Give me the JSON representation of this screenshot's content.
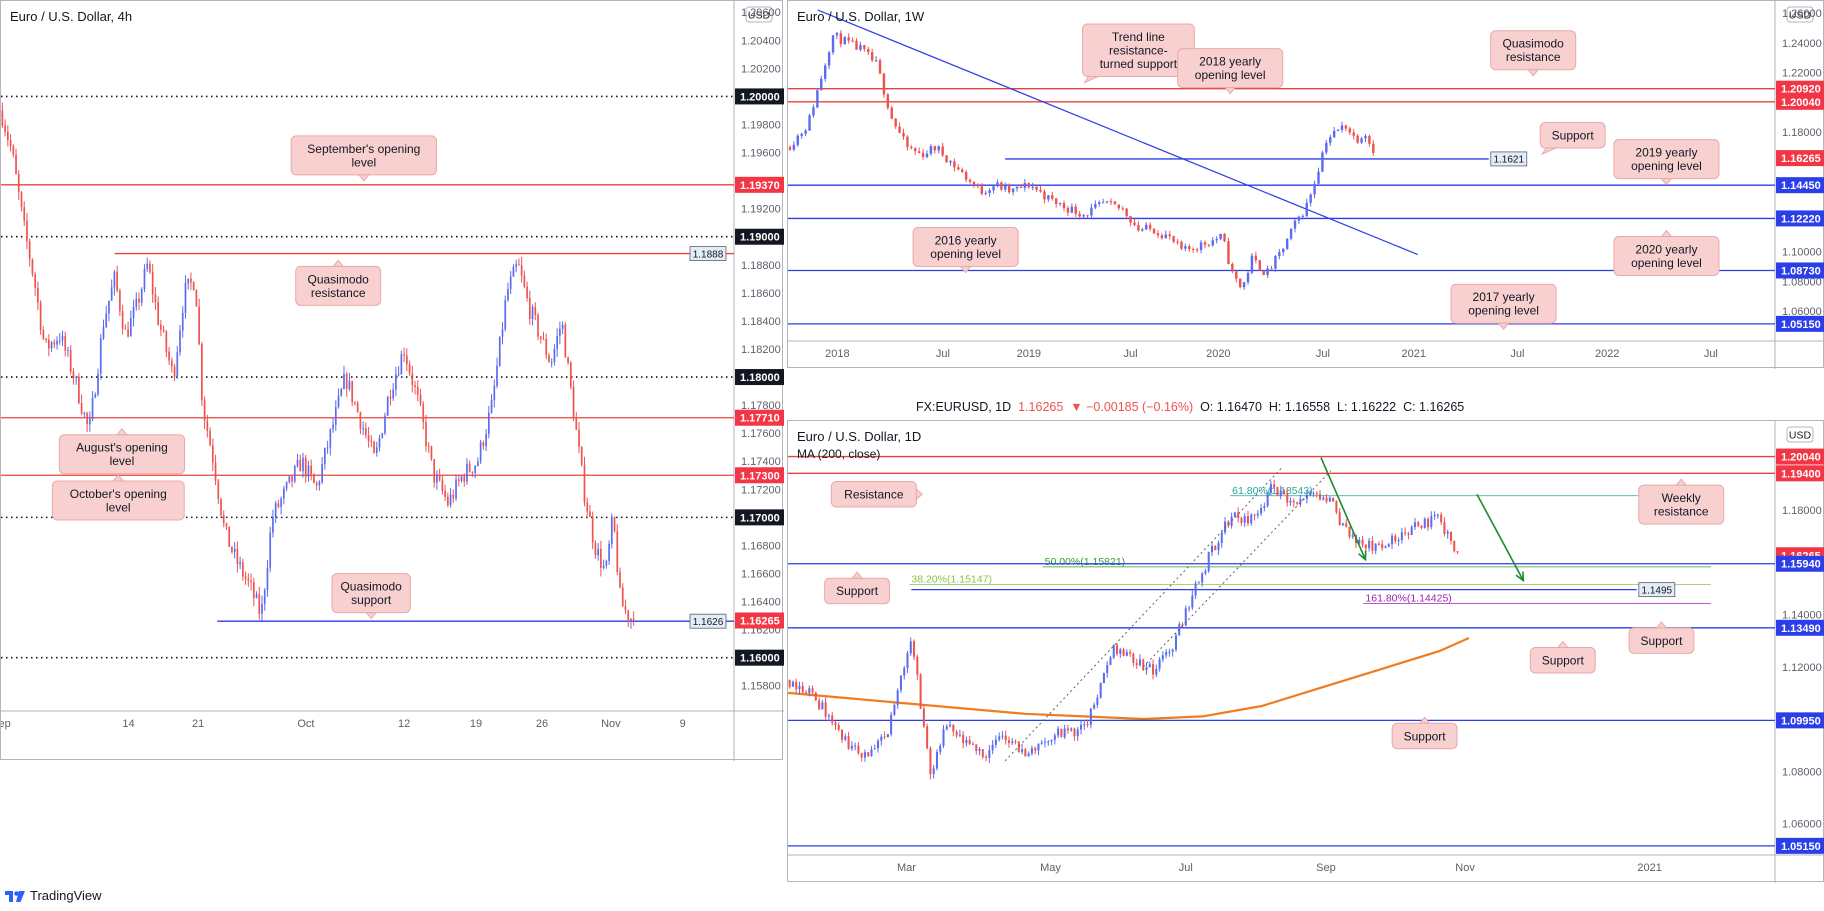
{
  "colors": {
    "red_line": "#e8423f",
    "blue_line": "#2c3ee8",
    "black_dotted": "#131722",
    "candle_up": "#5b6cf0",
    "candle_down": "#ef5350",
    "callout_bg": "#f8d0cf",
    "callout_border": "#e9a9a8",
    "ma_orange": "#f07c1e",
    "fib_green": "#2e9e2e",
    "fib_purple": "#9c27b0"
  },
  "ohlc": {
    "symbol": "FX:EURUSD, 1D",
    "close": "1.16265",
    "change": "▼ −0.00185 (−0.16%)",
    "open": "O: 1.16470",
    "high": "H: 1.16558",
    "low": "L: 1.16222",
    "close_label": "C: 1.16265"
  },
  "branding": {
    "name": "TradingView"
  },
  "chart_data": [
    {
      "id": "h4",
      "type": "candlestick",
      "title": "Euro / U.S. Dollar, 4h",
      "currency_badge": "USD",
      "ylim": [
        1.1562,
        1.2068
      ],
      "xlim": [
        0,
        100
      ],
      "y_ticks": [
        "1.20600",
        "1.20400",
        "1.20200",
        "1.19800",
        "1.19600",
        "1.19200",
        "1.18800",
        "1.18600",
        "1.18400",
        "1.18200",
        "1.17800",
        "1.17600",
        "1.17400",
        "1.17200",
        "1.16800",
        "1.16600",
        "1.16400",
        "1.16200",
        "1.15800"
      ],
      "x_ticks": [
        {
          "label": "ep",
          "x": 0.5
        },
        {
          "label": "14",
          "x": 17.4
        },
        {
          "label": "21",
          "x": 26.9
        },
        {
          "label": "Oct",
          "x": 41.6
        },
        {
          "label": "12",
          "x": 55.0
        },
        {
          "label": "19",
          "x": 64.8
        },
        {
          "label": "26",
          "x": 73.8
        },
        {
          "label": "Nov",
          "x": 83.2
        },
        {
          "label": "9",
          "x": 93.0
        }
      ],
      "levels": [
        {
          "value": 1.2,
          "style": "dotted",
          "label": "1.20000",
          "tag": "black"
        },
        {
          "value": 1.1937,
          "style": "red",
          "label": "1.19370",
          "tag": "red"
        },
        {
          "value": 1.19,
          "style": "dotted",
          "label": "1.19000",
          "tag": "black"
        },
        {
          "value": 1.1888,
          "style": "red",
          "label": "1.1888",
          "tag": "box",
          "x_from": 15.5
        },
        {
          "value": 1.18,
          "style": "dotted",
          "label": "1.18000",
          "tag": "black"
        },
        {
          "value": 1.1771,
          "style": "red",
          "label": "1.17710",
          "tag": "red"
        },
        {
          "value": 1.173,
          "style": "red",
          "label": "1.17300",
          "tag": "red"
        },
        {
          "value": 1.17,
          "style": "dotted",
          "label": "1.17000",
          "tag": "black"
        },
        {
          "value": 1.1626,
          "style": "blue",
          "label": "1.1626",
          "tag": "box",
          "x_from": 29.5
        },
        {
          "value": 1.16265,
          "style": "none",
          "label": "1.16265",
          "tag": "red"
        },
        {
          "value": 1.16,
          "style": "dotted",
          "label": "1.16000",
          "tag": "black"
        }
      ],
      "callouts": [
        {
          "text": [
            "September's opening",
            "level"
          ],
          "x": 49.5,
          "y": 1.1958,
          "ptr": "down"
        },
        {
          "text": [
            "Quasimodo",
            "resistance"
          ],
          "x": 46.0,
          "y": 1.1865,
          "ptr": "up"
        },
        {
          "text": [
            "August's opening",
            "level"
          ],
          "x": 16.5,
          "y": 1.1745,
          "ptr": "up"
        },
        {
          "text": [
            "October's opening",
            "level"
          ],
          "x": 16.0,
          "y": 1.1712,
          "ptr": "up"
        },
        {
          "text": [
            "Quasimodo",
            "support"
          ],
          "x": 50.5,
          "y": 1.1646,
          "ptr": "down"
        }
      ],
      "path": [
        [
          0,
          1.199
        ],
        [
          1.5,
          1.196
        ],
        [
          3,
          1.191
        ],
        [
          4.5,
          1.187
        ],
        [
          6,
          1.182
        ],
        [
          8,
          1.183
        ],
        [
          10,
          1.18
        ],
        [
          12,
          1.176
        ],
        [
          14,
          1.184
        ],
        [
          15.5,
          1.187
        ],
        [
          17,
          1.183
        ],
        [
          18.5,
          1.185
        ],
        [
          20,
          1.188
        ],
        [
          21.5,
          1.184
        ],
        [
          23.5,
          1.18
        ],
        [
          25,
          1.186
        ],
        [
          26.5,
          1.187
        ],
        [
          27.5,
          1.178
        ],
        [
          29,
          1.174
        ],
        [
          30.5,
          1.169
        ],
        [
          32,
          1.167
        ],
        [
          34,
          1.165
        ],
        [
          35.5,
          1.163
        ],
        [
          37,
          1.17
        ],
        [
          39,
          1.172
        ],
        [
          41,
          1.174
        ],
        [
          43,
          1.172
        ],
        [
          45,
          1.176
        ],
        [
          47,
          1.18
        ],
        [
          49,
          1.177
        ],
        [
          51,
          1.174
        ],
        [
          53,
          1.179
        ],
        [
          55,
          1.182
        ],
        [
          57,
          1.178
        ],
        [
          59,
          1.173
        ],
        [
          61,
          1.171
        ],
        [
          63,
          1.173
        ],
        [
          65,
          1.174
        ],
        [
          67,
          1.178
        ],
        [
          69,
          1.186
        ],
        [
          70.5,
          1.188
        ],
        [
          72,
          1.185
        ],
        [
          73.5,
          1.183
        ],
        [
          75,
          1.181
        ],
        [
          76.5,
          1.184
        ],
        [
          78,
          1.178
        ],
        [
          79.5,
          1.172
        ],
        [
          81,
          1.168
        ],
        [
          82.5,
          1.166
        ],
        [
          83.5,
          1.17
        ],
        [
          84.5,
          1.164
        ],
        [
          85.5,
          1.163
        ],
        [
          86.5,
          1.16265
        ]
      ]
    },
    {
      "id": "w1",
      "type": "candlestick",
      "title": "Euro / U.S. Dollar, 1W",
      "currency_badge": "USD",
      "ylim": [
        1.04,
        1.268
      ],
      "xlim": [
        0,
        100
      ],
      "y_ticks": [
        "1.26000",
        "1.24000",
        "1.22000",
        "1.18000",
        "1.10000",
        "1.08000",
        "1.06000"
      ],
      "x_ticks": [
        {
          "label": "2018",
          "x": 5.0
        },
        {
          "label": "Jul",
          "x": 15.7
        },
        {
          "label": "2019",
          "x": 24.4
        },
        {
          "label": "Jul",
          "x": 34.7
        },
        {
          "label": "2020",
          "x": 43.6
        },
        {
          "label": "Jul",
          "x": 54.2
        },
        {
          "label": "2021",
          "x": 63.4
        },
        {
          "label": "Jul",
          "x": 73.9
        },
        {
          "label": "2022",
          "x": 83.0
        },
        {
          "label": "Jul",
          "x": 93.5
        }
      ],
      "levels": [
        {
          "value": 1.2092,
          "style": "red",
          "label": "1.20920",
          "tag": "red"
        },
        {
          "value": 1.2004,
          "style": "red",
          "label": "1.20040",
          "tag": "red"
        },
        {
          "value": 1.16265,
          "style": "none",
          "label": "1.16265",
          "tag": "red"
        },
        {
          "value": 1.1621,
          "style": "blue",
          "label": "1.1621",
          "tag": "box",
          "x_from": 22.0,
          "x_to": 71.0
        },
        {
          "value": 1.1445,
          "style": "blue",
          "label": "1.14450",
          "tag": "blue"
        },
        {
          "value": 1.1222,
          "style": "blue",
          "label": "1.12220",
          "tag": "blue"
        },
        {
          "value": 1.0873,
          "style": "blue",
          "label": "1.08730",
          "tag": "blue"
        },
        {
          "value": 1.0515,
          "style": "blue",
          "label": "1.05150",
          "tag": "blue"
        }
      ],
      "trendline": {
        "x1": 3.0,
        "y1": 1.262,
        "x2": 63.8,
        "y2": 1.098
      },
      "callouts": [
        {
          "text": [
            "Trend line",
            "resistance-",
            "turned support"
          ],
          "x": 35.5,
          "y": 1.235,
          "ptr": "down-left"
        },
        {
          "text": [
            "2018 yearly",
            "opening level"
          ],
          "x": 44.8,
          "y": 1.223,
          "ptr": "down"
        },
        {
          "text": [
            "Quasimodo",
            "resistance"
          ],
          "x": 75.5,
          "y": 1.235,
          "ptr": "down"
        },
        {
          "text": [
            "Support"
          ],
          "x": 79.5,
          "y": 1.178,
          "ptr": "down-left"
        },
        {
          "text": [
            "2019 yearly",
            "opening level"
          ],
          "x": 89.0,
          "y": 1.162,
          "ptr": "down"
        },
        {
          "text": [
            "2016 yearly",
            "opening level"
          ],
          "x": 18.0,
          "y": 1.103,
          "ptr": "down"
        },
        {
          "text": [
            "2020 yearly",
            "opening level"
          ],
          "x": 89.0,
          "y": 1.097,
          "ptr": "up"
        },
        {
          "text": [
            "2017 yearly",
            "opening level"
          ],
          "x": 72.5,
          "y": 1.065,
          "ptr": "down"
        }
      ],
      "path": [
        [
          0,
          1.17
        ],
        [
          2,
          1.185
        ],
        [
          3.5,
          1.22
        ],
        [
          4.5,
          1.245
        ],
        [
          6,
          1.24
        ],
        [
          7.5,
          1.235
        ],
        [
          9,
          1.225
        ],
        [
          10.5,
          1.19
        ],
        [
          12,
          1.17
        ],
        [
          13.5,
          1.165
        ],
        [
          15,
          1.17
        ],
        [
          16.5,
          1.16
        ],
        [
          18,
          1.15
        ],
        [
          19.5,
          1.14
        ],
        [
          21,
          1.145
        ],
        [
          22.5,
          1.14
        ],
        [
          24.5,
          1.145
        ],
        [
          26.5,
          1.135
        ],
        [
          28,
          1.13
        ],
        [
          30,
          1.125
        ],
        [
          32,
          1.132
        ],
        [
          34,
          1.128
        ],
        [
          35.5,
          1.115
        ],
        [
          37,
          1.115
        ],
        [
          38.5,
          1.11
        ],
        [
          40,
          1.1
        ],
        [
          42,
          1.105
        ],
        [
          44,
          1.11
        ],
        [
          45,
          1.085
        ],
        [
          46,
          1.075
        ],
        [
          47,
          1.095
        ],
        [
          48.5,
          1.085
        ],
        [
          50,
          1.1
        ],
        [
          51.5,
          1.12
        ],
        [
          52.5,
          1.13
        ],
        [
          53.5,
          1.15
        ],
        [
          54.5,
          1.175
        ],
        [
          55.5,
          1.18
        ],
        [
          56.5,
          1.185
        ],
        [
          57.5,
          1.175
        ],
        [
          58.5,
          1.18
        ],
        [
          59.5,
          1.16265
        ]
      ]
    },
    {
      "id": "d1",
      "type": "candlestick",
      "title": "Euro / U.S. Dollar, 1D",
      "ma_label": "MA (200, close)",
      "currency_badge": "USD",
      "ylim": [
        1.048,
        1.214
      ],
      "xlim": [
        0,
        100
      ],
      "y_ticks": [
        "1.18000",
        "1.14000",
        "1.12000",
        "1.08000",
        "1.06000"
      ],
      "x_ticks": [
        {
          "label": "Mar",
          "x": 12.0
        },
        {
          "label": "May",
          "x": 26.6
        },
        {
          "label": "Jul",
          "x": 40.3
        },
        {
          "label": "Sep",
          "x": 54.5
        },
        {
          "label": "Nov",
          "x": 68.6
        },
        {
          "label": "2021",
          "x": 87.3
        }
      ],
      "levels": [
        {
          "value": 1.2004,
          "style": "red",
          "label": "1.20040",
          "tag": "red"
        },
        {
          "value": 1.194,
          "style": "red",
          "label": "1.19400",
          "tag": "red"
        },
        {
          "value": 1.16265,
          "style": "none",
          "label": "1.16265",
          "tag": "red"
        },
        {
          "value": 1.1594,
          "style": "blue",
          "label": "1.15940",
          "tag": "blue"
        },
        {
          "value": 1.1495,
          "style": "blue",
          "label": "1.1495",
          "tag": "box",
          "x_from": 12.5,
          "x_to": 86.0
        },
        {
          "value": 1.1349,
          "style": "blue",
          "label": "1.13490",
          "tag": "blue"
        },
        {
          "value": 1.0995,
          "style": "blue",
          "label": "1.09950",
          "tag": "blue"
        },
        {
          "value": 1.0515,
          "style": "blue",
          "label": "1.05150",
          "tag": "blue"
        }
      ],
      "fib_lines": [
        {
          "value": 1.1854,
          "label": "61.80%(1.18543)",
          "x_label": 45.0,
          "color": "#26a69a"
        },
        {
          "value": 1.15821,
          "label": "50.00%(1.15821)",
          "x_label": 26.0,
          "color": "#2e9e2e"
        },
        {
          "value": 1.15147,
          "label": "38.20%(1.15147)",
          "x_label": 12.5,
          "color": "#8bc34a"
        },
        {
          "value": 1.14425,
          "label": "161.80%(1.14425)",
          "x_label": 58.5,
          "color": "#9c27b0"
        }
      ],
      "ma_path": [
        [
          0,
          1.11
        ],
        [
          6,
          1.108
        ],
        [
          12,
          1.106
        ],
        [
          18,
          1.104
        ],
        [
          24,
          1.102
        ],
        [
          30,
          1.101
        ],
        [
          36,
          1.1
        ],
        [
          42,
          1.101
        ],
        [
          48,
          1.105
        ],
        [
          54,
          1.112
        ],
        [
          60,
          1.119
        ],
        [
          66,
          1.126
        ],
        [
          69,
          1.131
        ]
      ],
      "callouts": [
        {
          "text": [
            "Resistance"
          ],
          "x": 8.7,
          "y": 1.186,
          "ptr": "right"
        },
        {
          "text": [
            "Weekly",
            "resistance"
          ],
          "x": 90.5,
          "y": 1.182,
          "ptr": "up"
        },
        {
          "text": [
            "Support"
          ],
          "x": 7.0,
          "y": 1.149,
          "ptr": "up"
        },
        {
          "text": [
            "Support"
          ],
          "x": 78.5,
          "y": 1.1225,
          "ptr": "up"
        },
        {
          "text": [
            "Support"
          ],
          "x": 88.5,
          "y": 1.13,
          "ptr": "up"
        },
        {
          "text": [
            "Support"
          ],
          "x": 64.5,
          "y": 1.0935,
          "ptr": "up"
        }
      ],
      "path": [
        [
          0,
          1.115
        ],
        [
          2,
          1.111
        ],
        [
          4,
          1.102
        ],
        [
          6,
          1.09
        ],
        [
          8,
          1.086
        ],
        [
          10,
          1.093
        ],
        [
          11.5,
          1.117
        ],
        [
          12.5,
          1.132
        ],
        [
          13.5,
          1.104
        ],
        [
          14.5,
          1.078
        ],
        [
          16,
          1.097
        ],
        [
          18,
          1.09
        ],
        [
          20,
          1.087
        ],
        [
          22,
          1.094
        ],
        [
          24,
          1.086
        ],
        [
          26,
          1.092
        ],
        [
          28,
          1.095
        ],
        [
          30,
          1.096
        ],
        [
          31.5,
          1.11
        ],
        [
          33,
          1.128
        ],
        [
          35,
          1.123
        ],
        [
          37,
          1.118
        ],
        [
          39,
          1.128
        ],
        [
          41,
          1.148
        ],
        [
          43,
          1.165
        ],
        [
          45,
          1.178
        ],
        [
          47,
          1.176
        ],
        [
          49,
          1.188
        ],
        [
          51,
          1.182
        ],
        [
          53,
          1.185
        ],
        [
          55,
          1.183
        ],
        [
          56.5,
          1.172
        ],
        [
          58,
          1.167
        ],
        [
          60,
          1.165
        ],
        [
          62,
          1.17
        ],
        [
          64,
          1.175
        ],
        [
          66,
          1.176
        ],
        [
          67,
          1.17
        ],
        [
          68,
          1.16265
        ]
      ]
    }
  ]
}
